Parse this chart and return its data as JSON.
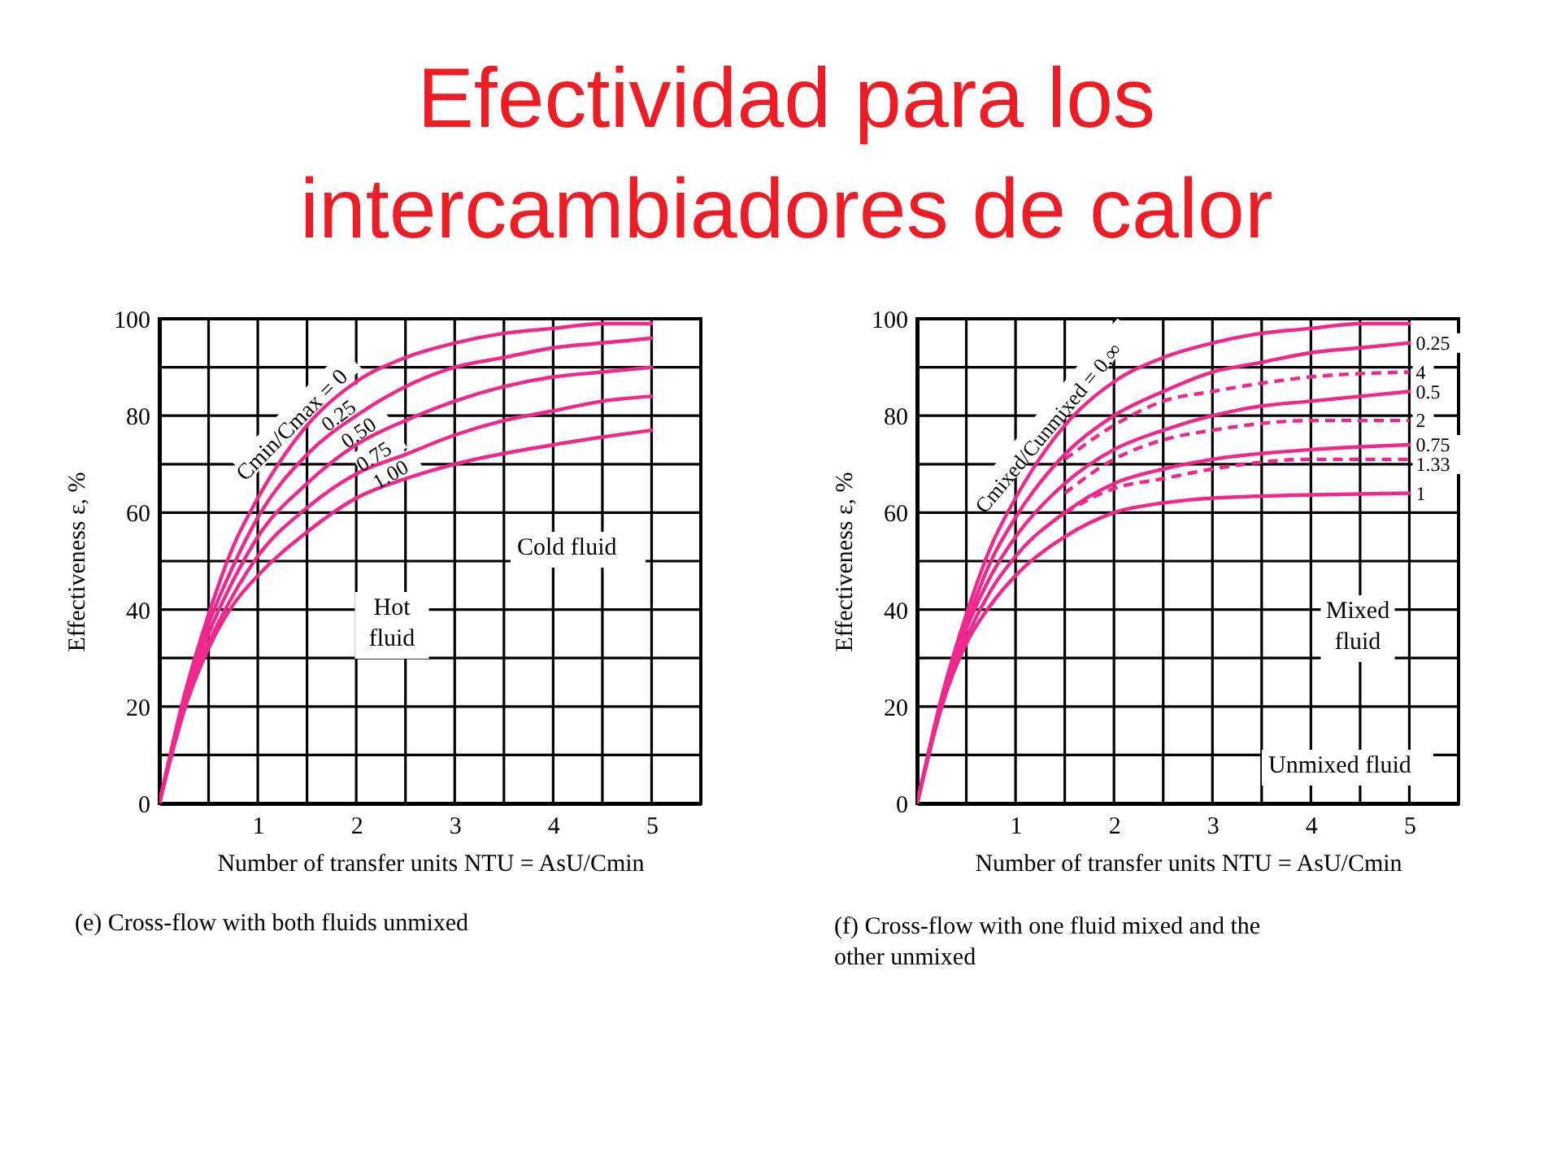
{
  "chart_data": [
    {
      "type": "line",
      "title": "Efectividad para los intercambiadores de calor",
      "xlabel": "Number of transfer units NTU = AsU/Cmin",
      "ylabel": "Effectiveness ε, %",
      "x": [
        0,
        0.25,
        0.5,
        0.75,
        1,
        1.5,
        2,
        2.5,
        3,
        3.5,
        4,
        4.5,
        5
      ],
      "series": [
        {
          "name": "Cmin/Cmax = 0",
          "color": "#f0288c",
          "values": [
            0,
            22,
            39,
            53,
            63,
            78,
            87,
            92,
            95,
            97,
            98,
            99,
            99
          ]
        },
        {
          "name": "0.25",
          "color": "#f0288c",
          "values": [
            0,
            21,
            37,
            49,
            59,
            72,
            80,
            86,
            90,
            92,
            94,
            95,
            96
          ]
        },
        {
          "name": "0.50",
          "color": "#f0288c",
          "values": [
            0,
            21,
            35,
            46,
            55,
            66,
            74,
            79,
            83,
            86,
            88,
            89,
            90
          ]
        },
        {
          "name": "0.75",
          "color": "#f0288c",
          "values": [
            0,
            20,
            33,
            43,
            51,
            61,
            68,
            72,
            76,
            79,
            81,
            83,
            84
          ]
        },
        {
          "name": "1.00",
          "color": "#f0288c",
          "x": [
            0,
            0.25,
            0.5,
            0.75,
            1,
            1.5,
            2,
            2.5,
            3,
            4,
            5
          ],
          "values": [
            0,
            19,
            32,
            41,
            47,
            56,
            63,
            67,
            70,
            74,
            77
          ]
        }
      ],
      "xlim": [
        0,
        5.5
      ],
      "ylim": [
        0,
        100
      ],
      "xticks": [
        {
          "value": 0.5,
          "label": null
        },
        1,
        {
          "value": 1.5,
          "label": null
        },
        2,
        {
          "value": 2.5,
          "label": null
        },
        3,
        {
          "value": 3.5,
          "label": null
        },
        4,
        {
          "value": 4.5,
          "label": null
        },
        5
      ],
      "yticks": [
        0,
        {
          "value": 10,
          "label": null
        },
        20,
        {
          "value": 30,
          "label": null
        },
        40,
        {
          "value": 50,
          "label": null
        },
        60,
        {
          "value": 70,
          "label": null
        },
        80,
        {
          "value": 90,
          "label": null
        },
        100
      ],
      "grid": true,
      "line_style": "solid",
      "annotations": [
        "(e) Cross-flow with both fluids unmixed",
        "Cold fluid",
        "Hot fluid"
      ]
    },
    {
      "type": "line",
      "xlabel": "Number of transfer units NTU = AsU/Cmin",
      "ylabel": "Effectiveness ε, %",
      "x": [
        0,
        0.25,
        0.5,
        0.75,
        1,
        1.5,
        2,
        2.5,
        3,
        3.5,
        4,
        4.5,
        5
      ],
      "series": [
        {
          "name": "Cmixed/Cunmixed = 0,∞",
          "color": "#f0288c",
          "values": [
            0,
            22,
            39,
            53,
            63,
            78,
            87,
            92,
            95,
            97,
            98,
            99,
            99
          ]
        },
        {
          "name": "0.25",
          "color": "#f0288c",
          "values": [
            0,
            21,
            37,
            50,
            59,
            72,
            80,
            85,
            89,
            91,
            93,
            94,
            95
          ]
        },
        {
          "name": "4",
          "color": "#f0288c",
          "line_style": "dashed",
          "x": [
            1.5,
            2,
            2.5,
            3,
            4,
            5
          ],
          "values": [
            71,
            78,
            83,
            85,
            88,
            89
          ]
        },
        {
          "name": "0.5",
          "color": "#f0288c",
          "values": [
            0,
            21,
            36,
            47,
            55,
            66,
            73,
            77,
            80,
            82,
            83,
            84,
            85
          ]
        },
        {
          "name": "2",
          "color": "#f0288c",
          "line_style": "dashed",
          "x": [
            1.5,
            2,
            2.5,
            3,
            4,
            5
          ],
          "values": [
            64,
            71,
            75,
            77,
            79,
            79
          ]
        },
        {
          "name": "0.75",
          "color": "#f0288c",
          "x": [
            0,
            0.25,
            0.5,
            0.75,
            1,
            1.5,
            2,
            2.5,
            3,
            4,
            5
          ],
          "values": [
            0,
            20,
            34,
            44,
            51,
            60,
            66,
            69,
            71,
            73,
            74
          ]
        },
        {
          "name": "1.33",
          "color": "#f0288c",
          "line_style": "dashed",
          "x": [
            1.5,
            2,
            2.5,
            3,
            4,
            5
          ],
          "values": [
            60,
            65,
            67,
            69,
            71,
            71
          ]
        },
        {
          "name": "1",
          "color": "#f0288c",
          "x": [
            0,
            0.25,
            0.5,
            0.75,
            1,
            1.5,
            2,
            2.5,
            3,
            5
          ],
          "values": [
            0,
            20,
            33,
            41,
            47,
            55,
            60,
            62,
            63,
            64
          ]
        }
      ],
      "xlim": [
        0,
        5.5
      ],
      "ylim": [
        0,
        100
      ],
      "xticks": [
        {
          "value": 0.5,
          "label": null
        },
        1,
        {
          "value": 1.5,
          "label": null
        },
        2,
        {
          "value": 2.5,
          "label": null
        },
        3,
        {
          "value": 3.5,
          "label": null
        },
        4,
        {
          "value": 4.5,
          "label": null
        },
        5
      ],
      "yticks": [
        0,
        {
          "value": 10,
          "label": null
        },
        20,
        {
          "value": 30,
          "label": null
        },
        40,
        {
          "value": 50,
          "label": null
        },
        60,
        {
          "value": 70,
          "label": null
        },
        80,
        {
          "value": 90,
          "label": null
        },
        100
      ],
      "grid": true,
      "line_style": "solid",
      "annotations": [
        "(f) Cross-flow with one fluid mixed and the other unmixed",
        "Mixed fluid",
        "Unmixed fluid"
      ]
    }
  ]
}
